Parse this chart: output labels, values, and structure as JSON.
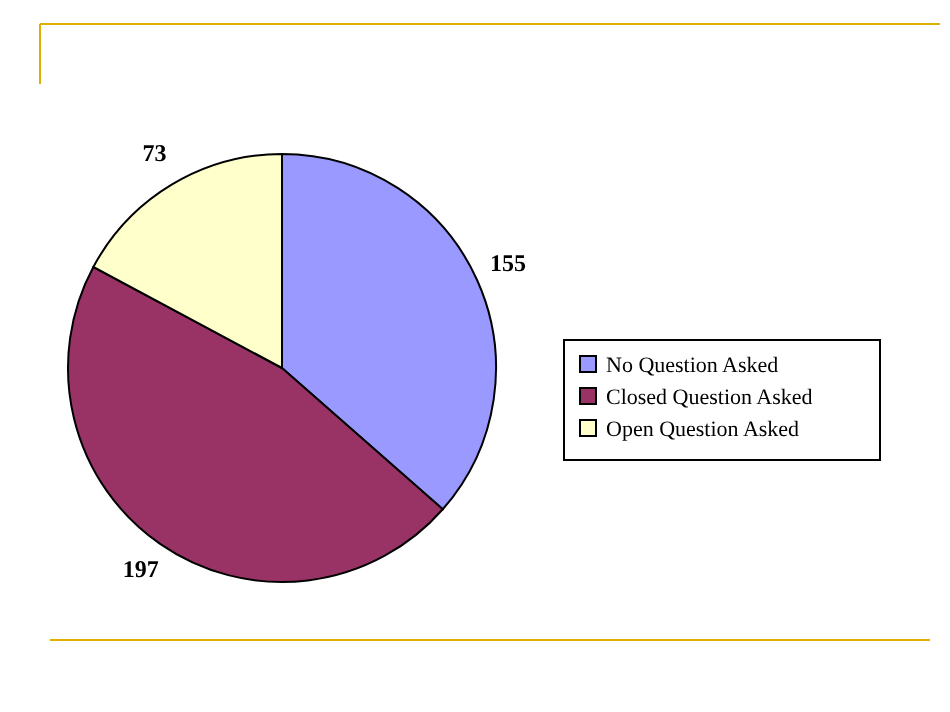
{
  "chart_data": {
    "type": "pie",
    "categories": [
      "No Question Asked",
      "Closed Question Asked",
      "Open Question Asked"
    ],
    "values": [
      155,
      197,
      73
    ],
    "colors": [
      "#9999ff",
      "#993366",
      "#ffffcc"
    ],
    "data_labels": true,
    "legend": "right"
  }
}
